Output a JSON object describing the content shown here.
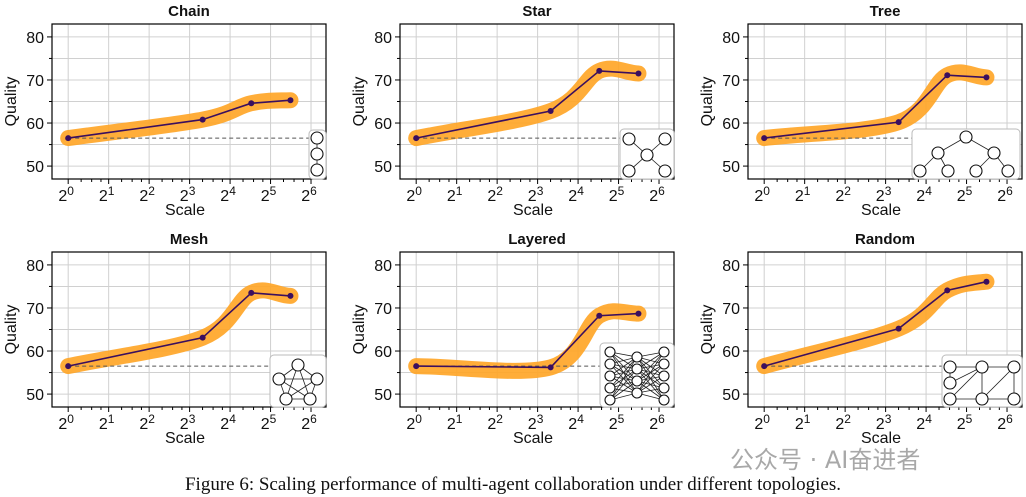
{
  "caption": "Figure 6: Scaling performance of multi-agent collaboration under different topologies.",
  "watermark": "公众号 · AI奋进者",
  "colors": {
    "band": "#ffa424",
    "line": "#3b0f5e",
    "baseline": "#555555",
    "grid": "#d0d0d0"
  },
  "chart_data": [
    {
      "type": "line",
      "title": "Chain",
      "xlabel": "Scale",
      "ylabel": "Quality",
      "x_scale": "log2",
      "x_ticks": [
        "2^0",
        "2^1",
        "2^2",
        "2^3",
        "2^4",
        "2^5",
        "2^6"
      ],
      "ylim": [
        47,
        83
      ],
      "y_ticks": [
        50,
        60,
        70,
        80
      ],
      "grid": true,
      "baseline": 56.5,
      "topology_icon": "chain",
      "x": [
        1,
        10,
        23,
        45
      ],
      "y": [
        56.5,
        60.8,
        64.6,
        65.3
      ]
    },
    {
      "type": "line",
      "title": "Star",
      "xlabel": "Scale",
      "ylabel": "Quality",
      "x_scale": "log2",
      "x_ticks": [
        "2^0",
        "2^1",
        "2^2",
        "2^3",
        "2^4",
        "2^5",
        "2^6"
      ],
      "ylim": [
        47,
        83
      ],
      "y_ticks": [
        50,
        60,
        70,
        80
      ],
      "grid": true,
      "baseline": 56.5,
      "topology_icon": "star",
      "x": [
        1,
        10,
        23,
        45
      ],
      "y": [
        56.5,
        62.8,
        72.1,
        71.5
      ]
    },
    {
      "type": "line",
      "title": "Tree",
      "xlabel": "Scale",
      "ylabel": "Quality",
      "x_scale": "log2",
      "x_ticks": [
        "2^0",
        "2^1",
        "2^2",
        "2^3",
        "2^4",
        "2^5",
        "2^6"
      ],
      "ylim": [
        47,
        83
      ],
      "y_ticks": [
        50,
        60,
        70,
        80
      ],
      "grid": true,
      "baseline": 56.5,
      "topology_icon": "tree",
      "x": [
        1,
        10,
        23,
        45
      ],
      "y": [
        56.5,
        60.2,
        71.1,
        70.6
      ]
    },
    {
      "type": "line",
      "title": "Mesh",
      "xlabel": "Scale",
      "ylabel": "Quality",
      "x_scale": "log2",
      "x_ticks": [
        "2^0",
        "2^1",
        "2^2",
        "2^3",
        "2^4",
        "2^5",
        "2^6"
      ],
      "ylim": [
        47,
        83
      ],
      "y_ticks": [
        50,
        60,
        70,
        80
      ],
      "grid": true,
      "baseline": 56.5,
      "topology_icon": "mesh",
      "x": [
        1,
        10,
        23,
        45
      ],
      "y": [
        56.5,
        63.1,
        73.5,
        72.8
      ]
    },
    {
      "type": "line",
      "title": "Layered",
      "xlabel": "Scale",
      "ylabel": "Quality",
      "x_scale": "log2",
      "x_ticks": [
        "2^0",
        "2^1",
        "2^2",
        "2^3",
        "2^4",
        "2^5",
        "2^6"
      ],
      "ylim": [
        47,
        83
      ],
      "y_ticks": [
        50,
        60,
        70,
        80
      ],
      "grid": true,
      "baseline": 56.5,
      "topology_icon": "layered",
      "x": [
        1,
        10,
        23,
        45
      ],
      "y": [
        56.5,
        56.2,
        68.2,
        68.7
      ]
    },
    {
      "type": "line",
      "title": "Random",
      "xlabel": "Scale",
      "ylabel": "Quality",
      "x_scale": "log2",
      "x_ticks": [
        "2^0",
        "2^1",
        "2^2",
        "2^3",
        "2^4",
        "2^5",
        "2^6"
      ],
      "ylim": [
        47,
        83
      ],
      "y_ticks": [
        50,
        60,
        70,
        80
      ],
      "grid": true,
      "baseline": 56.5,
      "topology_icon": "random",
      "x": [
        1,
        10,
        23,
        45
      ],
      "y": [
        56.5,
        65.2,
        74.1,
        76.1
      ]
    }
  ]
}
